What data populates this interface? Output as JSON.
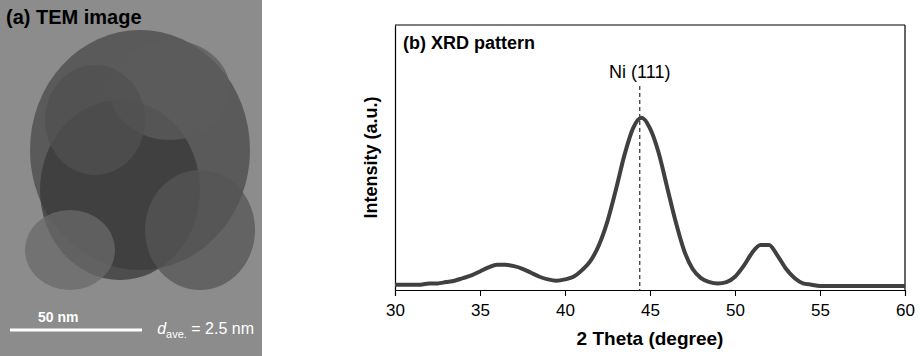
{
  "image_panel": {
    "title": "(a) TEM image",
    "scale_bar": "50 nm",
    "annotation": {
      "symbol": "d",
      "subscript": "ave.",
      "text": " = 2.5 nm"
    }
  },
  "chart_data": {
    "type": "line",
    "title": "(b) XRD pattern",
    "xlabel": "2 Theta (degree)",
    "ylabel": "Intensity (a.u.)",
    "x": [
      30,
      30.5,
      31,
      31.5,
      32,
      32.5,
      33,
      33.5,
      34,
      34.5,
      35,
      35.5,
      36,
      36.5,
      37,
      37.5,
      38,
      38.5,
      39,
      39.5,
      40,
      40.5,
      41,
      41.5,
      42,
      42.5,
      43,
      43.5,
      44,
      44.5,
      45,
      45.5,
      46,
      46.5,
      47,
      47.5,
      48,
      48.5,
      49,
      49.5,
      50,
      50.5,
      51,
      51.5,
      52,
      52.5,
      53,
      53.5,
      54,
      54.5,
      55,
      55.5,
      56,
      56.5,
      57,
      57.5,
      58,
      58.5,
      59,
      59.5,
      60
    ],
    "values": [
      2,
      2,
      2,
      2,
      2.5,
      2.5,
      3,
      3.5,
      4.5,
      5.5,
      7,
      8.5,
      9.5,
      9.5,
      9,
      8,
      6.5,
      5,
      4,
      3.5,
      4,
      5,
      7.5,
      11,
      17,
      26,
      38,
      51,
      61,
      65,
      61,
      52,
      39,
      26,
      15,
      8,
      4.5,
      3,
      2.5,
      3,
      5,
      9,
      14,
      17,
      17,
      13,
      8,
      4.5,
      2.5,
      2,
      1.5,
      1.5,
      1.5,
      1.5,
      1.5,
      1.5,
      1.5,
      1.5,
      1.5,
      1.5,
      1.5
    ],
    "color": "#404040",
    "xlim": [
      30,
      60
    ],
    "xticks": [
      30,
      35,
      40,
      45,
      50,
      55,
      60
    ],
    "ylim": [
      0,
      100
    ],
    "tick_labels": "x",
    "annotations": [
      {
        "text": "Ni (111)",
        "x": 44.4
      }
    ]
  }
}
